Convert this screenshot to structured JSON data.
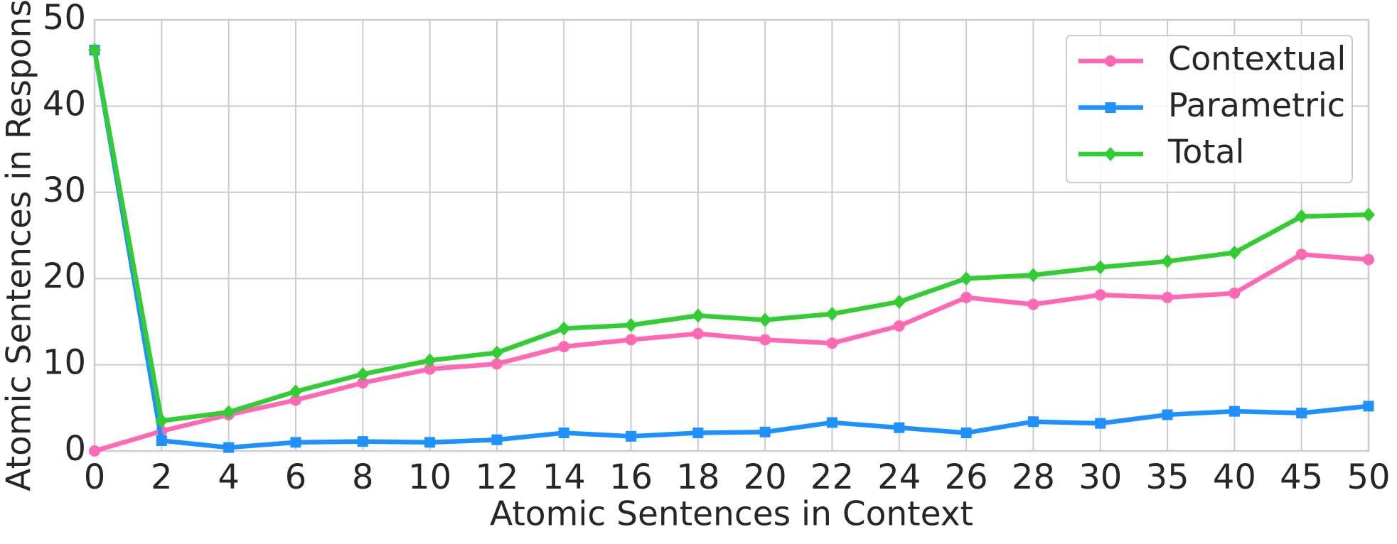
{
  "chart_data": {
    "type": "line",
    "x_label": "Atomic Sentences in Context",
    "y_label": "Atomic Sentences in Response",
    "categories": [
      "0",
      "2",
      "4",
      "6",
      "8",
      "10",
      "12",
      "14",
      "16",
      "18",
      "20",
      "22",
      "24",
      "26",
      "28",
      "30",
      "35",
      "40",
      "45",
      "50"
    ],
    "series": [
      {
        "name": "Contextual",
        "color": "#ff69b4",
        "marker": "circle",
        "values": [
          0,
          2.3,
          4.2,
          5.9,
          7.9,
          9.5,
          10.1,
          12.1,
          12.9,
          13.6,
          12.9,
          12.5,
          14.5,
          17.8,
          17.0,
          18.1,
          17.8,
          18.3,
          22.8,
          22.2
        ]
      },
      {
        "name": "Parametric",
        "color": "#1e90ff",
        "marker": "square",
        "values": [
          46.5,
          1.2,
          0.4,
          1.0,
          1.1,
          1.0,
          1.3,
          2.1,
          1.7,
          2.1,
          2.2,
          3.3,
          2.7,
          2.1,
          3.4,
          3.2,
          4.2,
          4.6,
          4.4,
          5.2
        ]
      },
      {
        "name": "Total",
        "color": "#32cd32",
        "marker": "diamond",
        "values": [
          46.5,
          3.5,
          4.5,
          6.9,
          8.9,
          10.5,
          11.4,
          14.2,
          14.6,
          15.7,
          15.2,
          15.9,
          17.3,
          20.0,
          20.4,
          21.3,
          22.0,
          23.0,
          27.2,
          27.4
        ]
      }
    ],
    "ylim": [
      0,
      50
    ],
    "yticks": [
      0,
      10,
      20,
      30,
      40,
      50
    ],
    "grid": true,
    "legend": "upper right"
  }
}
